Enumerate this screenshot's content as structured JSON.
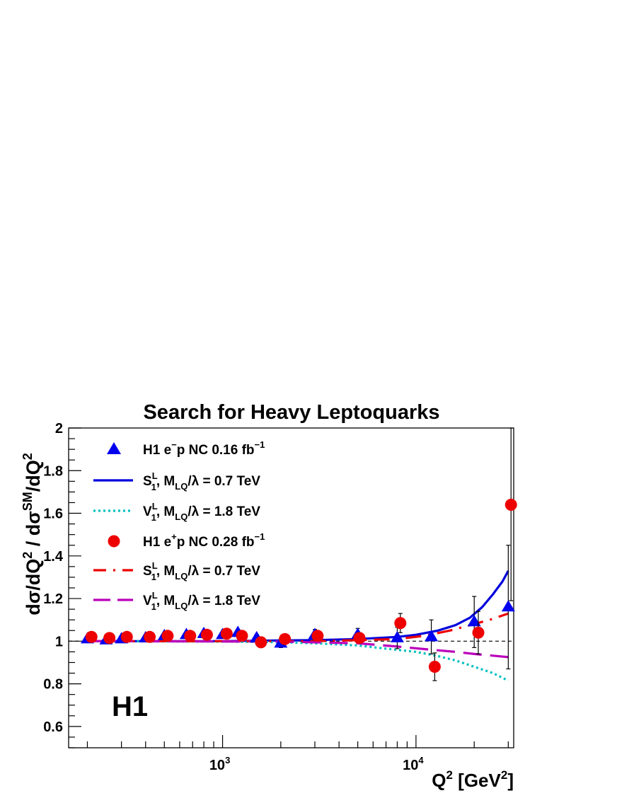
{
  "chart_data": {
    "type": "scatter",
    "title": "Search for Heavy Leptoquarks",
    "xlabel": {
      "base": "Q",
      "sup": "2",
      "unit_pre": " [GeV",
      "unit_sup": "2",
      "unit_post": "]"
    },
    "ylabel": "dσ/dQ² / dσ^SM/dQ²",
    "xscale": "log",
    "xlim": [
      160,
      32000
    ],
    "ylim": [
      0.5,
      2.0
    ],
    "y_ticks": [
      {
        "v": 0.6,
        "label": "0.6"
      },
      {
        "v": 0.8,
        "label": "0.8"
      },
      {
        "v": 1.0,
        "label": "1"
      },
      {
        "v": 1.2,
        "label": "1.2"
      },
      {
        "v": 1.4,
        "label": "1.4"
      },
      {
        "v": 1.6,
        "label": "1.6"
      },
      {
        "v": 1.8,
        "label": "1.8"
      },
      {
        "v": 2.0,
        "label": "2"
      }
    ],
    "x_ticks": [
      {
        "v": 1000,
        "base": "10",
        "exp": "3"
      },
      {
        "v": 10000,
        "base": "10",
        "exp": "4"
      }
    ],
    "reference_line": 1.0,
    "watermark": "H1",
    "series": [
      {
        "name": "H1 e⁻p NC 0.16 fb⁻¹",
        "kind": "points",
        "marker": "triangle",
        "color": "#0000ee",
        "points": [
          {
            "x": 200,
            "y": 1.01,
            "err": 0.006
          },
          {
            "x": 250,
            "y": 1.005,
            "err": 0.006
          },
          {
            "x": 300,
            "y": 1.01,
            "err": 0.007
          },
          {
            "x": 400,
            "y": 1.015,
            "err": 0.008
          },
          {
            "x": 500,
            "y": 1.025,
            "err": 0.009
          },
          {
            "x": 650,
            "y": 1.03,
            "err": 0.01
          },
          {
            "x": 800,
            "y": 1.035,
            "err": 0.012
          },
          {
            "x": 1000,
            "y": 1.03,
            "err": 0.013
          },
          {
            "x": 1200,
            "y": 1.04,
            "err": 0.015
          },
          {
            "x": 1500,
            "y": 1.015,
            "err": 0.017
          },
          {
            "x": 2000,
            "y": 0.99,
            "err": 0.02
          },
          {
            "x": 3000,
            "y": 1.03,
            "err": 0.025
          },
          {
            "x": 5000,
            "y": 1.03,
            "err": 0.03
          },
          {
            "x": 8000,
            "y": 1.015,
            "err": 0.05
          },
          {
            "x": 12000,
            "y": 1.02,
            "err": 0.08
          },
          {
            "x": 20000,
            "y": 1.09,
            "err": 0.12
          },
          {
            "x": 30000,
            "y": 1.16,
            "err": 0.29
          }
        ]
      },
      {
        "name": "S₁ᴸ, M_LQ/λ = 0.7 TeV",
        "kind": "line",
        "style": "solid",
        "color": "#0000dd",
        "points": [
          {
            "x": 200,
            "y": 1.0
          },
          {
            "x": 1000,
            "y": 1.0
          },
          {
            "x": 3000,
            "y": 1.005
          },
          {
            "x": 5000,
            "y": 1.01
          },
          {
            "x": 8000,
            "y": 1.02
          },
          {
            "x": 10000,
            "y": 1.03
          },
          {
            "x": 13000,
            "y": 1.05
          },
          {
            "x": 16000,
            "y": 1.075
          },
          {
            "x": 19000,
            "y": 1.11
          },
          {
            "x": 22000,
            "y": 1.16
          },
          {
            "x": 25000,
            "y": 1.22
          },
          {
            "x": 28000,
            "y": 1.28
          },
          {
            "x": 30000,
            "y": 1.33
          }
        ]
      },
      {
        "name": "V₁ᴸ, M_LQ/λ = 1.8 TeV",
        "kind": "line",
        "style": "dotted",
        "color": "#00c0c0",
        "points": [
          {
            "x": 200,
            "y": 1.0
          },
          {
            "x": 1000,
            "y": 0.998
          },
          {
            "x": 2000,
            "y": 0.995
          },
          {
            "x": 3000,
            "y": 0.99
          },
          {
            "x": 5000,
            "y": 0.98
          },
          {
            "x": 7000,
            "y": 0.965
          },
          {
            "x": 10000,
            "y": 0.95
          },
          {
            "x": 13000,
            "y": 0.93
          },
          {
            "x": 16000,
            "y": 0.91
          },
          {
            "x": 20000,
            "y": 0.88
          },
          {
            "x": 25000,
            "y": 0.85
          },
          {
            "x": 30000,
            "y": 0.815
          }
        ]
      },
      {
        "name": "H1 e⁺p NC 0.28 fb⁻¹",
        "kind": "points",
        "marker": "circle",
        "color": "#ee0000",
        "points": [
          {
            "x": 210,
            "y": 1.02,
            "err": 0.005
          },
          {
            "x": 260,
            "y": 1.015,
            "err": 0.006
          },
          {
            "x": 320,
            "y": 1.02,
            "err": 0.006
          },
          {
            "x": 420,
            "y": 1.02,
            "err": 0.007
          },
          {
            "x": 520,
            "y": 1.025,
            "err": 0.008
          },
          {
            "x": 680,
            "y": 1.025,
            "err": 0.009
          },
          {
            "x": 830,
            "y": 1.03,
            "err": 0.01
          },
          {
            "x": 1050,
            "y": 1.035,
            "err": 0.011
          },
          {
            "x": 1260,
            "y": 1.025,
            "err": 0.012
          },
          {
            "x": 1580,
            "y": 0.995,
            "err": 0.014
          },
          {
            "x": 2100,
            "y": 1.01,
            "err": 0.016
          },
          {
            "x": 3100,
            "y": 1.025,
            "err": 0.02
          },
          {
            "x": 5100,
            "y": 1.015,
            "err": 0.025
          },
          {
            "x": 8300,
            "y": 1.085,
            "err": 0.045
          },
          {
            "x": 12500,
            "y": 0.88,
            "err": 0.065
          },
          {
            "x": 21000,
            "y": 1.04,
            "err": 0.1
          },
          {
            "x": 31000,
            "y": 1.64,
            "err": 0.45
          }
        ]
      },
      {
        "name": "S₁ᴸ, M_LQ/λ = 0.7 TeV",
        "kind": "line",
        "style": "dashdot",
        "color": "#ee0000",
        "points": [
          {
            "x": 200,
            "y": 1.0
          },
          {
            "x": 3000,
            "y": 1.0
          },
          {
            "x": 5000,
            "y": 1.005
          },
          {
            "x": 8000,
            "y": 1.01
          },
          {
            "x": 11000,
            "y": 1.025
          },
          {
            "x": 15000,
            "y": 1.05
          },
          {
            "x": 20000,
            "y": 1.08
          },
          {
            "x": 25000,
            "y": 1.105
          },
          {
            "x": 30000,
            "y": 1.13
          }
        ]
      },
      {
        "name": "V₁ᴸ, M_LQ/λ = 1.8 TeV",
        "kind": "line",
        "style": "longdash",
        "color": "#bb00bb",
        "points": [
          {
            "x": 200,
            "y": 1.0
          },
          {
            "x": 2000,
            "y": 0.998
          },
          {
            "x": 5000,
            "y": 0.99
          },
          {
            "x": 8000,
            "y": 0.975
          },
          {
            "x": 12000,
            "y": 0.96
          },
          {
            "x": 16000,
            "y": 0.95
          },
          {
            "x": 20000,
            "y": 0.94
          },
          {
            "x": 25000,
            "y": 0.932
          },
          {
            "x": 30000,
            "y": 0.925
          }
        ]
      }
    ],
    "legend": {
      "placement": "top-left",
      "entries": [
        {
          "marker": "triangle",
          "color": "#0000ee",
          "label": {
            "main": "H1 e",
            "sup1": "−",
            "mid": "p NC 0.16 fb",
            "sup2": "−1"
          }
        },
        {
          "marker": "line-solid",
          "color": "#0000dd",
          "label": {
            "S": "S",
            "S_sup": "L",
            "S_sub": "1",
            "mlq": "M",
            "mlq_sub": "LQ",
            "rest": "/λ = 0.7 TeV"
          }
        },
        {
          "marker": "line-dotted",
          "color": "#00c0c0",
          "label": {
            "S": "V",
            "S_sup": "L",
            "S_sub": "1",
            "mlq": "M",
            "mlq_sub": "LQ",
            "rest": "/λ = 1.8 TeV"
          }
        },
        {
          "marker": "circle",
          "color": "#ee0000",
          "label": {
            "main": "H1 e",
            "sup1": "+",
            "mid": "p NC 0.28 fb",
            "sup2": "−1"
          }
        },
        {
          "marker": "line-dashdot",
          "color": "#ee0000",
          "label": {
            "S": "S",
            "S_sup": "L",
            "S_sub": "1",
            "mlq": "M",
            "mlq_sub": "LQ",
            "rest": "/λ = 0.7 TeV"
          }
        },
        {
          "marker": "line-longdash",
          "color": "#bb00bb",
          "label": {
            "S": "V",
            "S_sup": "L",
            "S_sub": "1",
            "mlq": "M",
            "mlq_sub": "LQ",
            "rest": "/λ = 1.8 TeV"
          }
        }
      ]
    }
  }
}
